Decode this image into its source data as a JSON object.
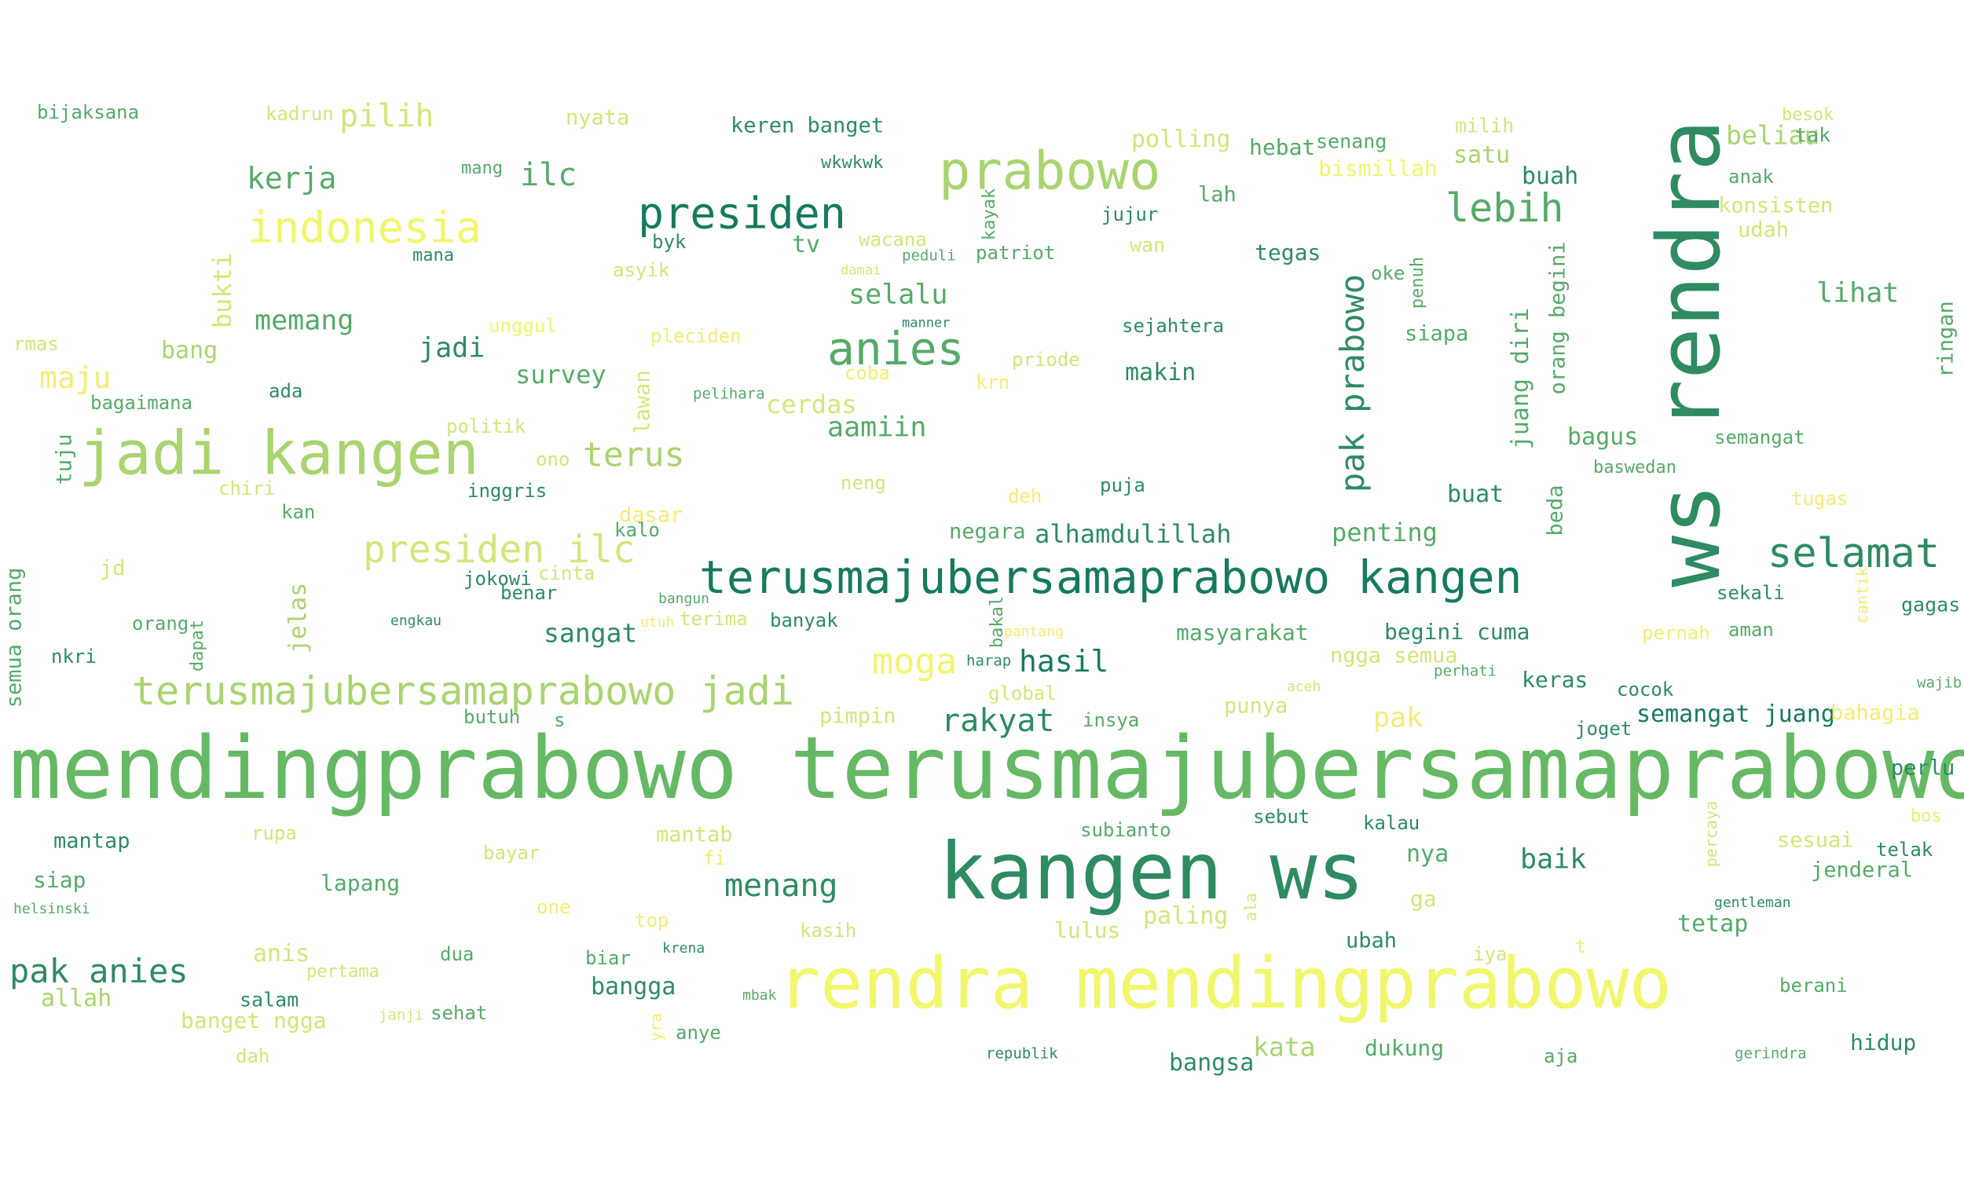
{
  "palette": {
    "yellow": "#f1f66a",
    "light_yellow": "#f5ec74",
    "lime": "#d3e67a",
    "light_green": "#a9d46f",
    "green": "#66b964",
    "mid_green": "#56aa69",
    "teal": "#2e8b62",
    "dark_teal": "#167a5e"
  },
  "words": [
    {
      "text": "mendingprabowo terusmajubersamaprabowo",
      "color": "green"
    },
    {
      "text": "ws rendra",
      "color": "teal"
    },
    {
      "text": "kangen ws",
      "color": "teal"
    },
    {
      "text": "rendra mendingprabowo",
      "color": "yellow"
    },
    {
      "text": "jadi kangen",
      "color": "light_green"
    },
    {
      "text": "terusmajubersamaprabowo kangen",
      "color": "dark_teal"
    },
    {
      "text": "terusmajubersamaprabowo jadi",
      "color": "light_green"
    },
    {
      "text": "prabowo",
      "color": "light_green"
    },
    {
      "text": "presiden",
      "color": "dark_teal"
    },
    {
      "text": "anies",
      "color": "mid_green"
    },
    {
      "text": "indonesia",
      "color": "yellow"
    },
    {
      "text": "presiden ilc",
      "color": "lime"
    },
    {
      "text": "selamat",
      "color": "teal"
    },
    {
      "text": "lebih",
      "color": "mid_green"
    },
    {
      "text": "pak prabowo",
      "color": "teal"
    },
    {
      "text": "pak anies",
      "color": "teal"
    },
    {
      "text": "moga",
      "color": "yellow"
    },
    {
      "text": "menang",
      "color": "teal"
    },
    {
      "text": "rakyat",
      "color": "teal"
    },
    {
      "text": "hasil",
      "color": "dark_teal"
    },
    {
      "text": "selalu",
      "color": "mid_green"
    },
    {
      "text": "terus",
      "color": "light_green"
    },
    {
      "text": "kerja",
      "color": "mid_green"
    },
    {
      "text": "ilc",
      "color": "mid_green"
    },
    {
      "text": "pilih",
      "color": "lime"
    },
    {
      "text": "lihat",
      "color": "mid_green"
    },
    {
      "text": "baik",
      "color": "teal"
    },
    {
      "text": "aamiin",
      "color": "mid_green"
    },
    {
      "text": "cerdas",
      "color": "lime"
    },
    {
      "text": "memang",
      "color": "mid_green"
    },
    {
      "text": "maju",
      "color": "light_yellow"
    },
    {
      "text": "jadi",
      "color": "teal"
    },
    {
      "text": "survey",
      "color": "mid_green"
    },
    {
      "text": "alhamdulillah",
      "color": "teal"
    },
    {
      "text": "penting",
      "color": "mid_green"
    },
    {
      "text": "sangat",
      "color": "teal"
    },
    {
      "text": "makin",
      "color": "teal"
    },
    {
      "text": "beliau",
      "color": "light_green"
    },
    {
      "text": "bagus",
      "color": "mid_green"
    },
    {
      "text": "buat",
      "color": "teal"
    },
    {
      "text": "bukti",
      "color": "lime"
    },
    {
      "text": "jelas",
      "color": "light_green"
    },
    {
      "text": "juang diri",
      "color": "mid_green"
    },
    {
      "text": "orang begini",
      "color": "mid_green"
    },
    {
      "text": "semua orang",
      "color": "mid_green"
    },
    {
      "text": "lawan",
      "color": "lime"
    },
    {
      "text": "tuju",
      "color": "mid_green"
    },
    {
      "text": "beda",
      "color": "mid_green"
    },
    {
      "text": "ringan",
      "color": "mid_green"
    },
    {
      "text": "penuh",
      "color": "mid_green"
    },
    {
      "text": "kayak",
      "color": "mid_green"
    },
    {
      "text": "bakal",
      "color": "mid_green"
    },
    {
      "text": "dapat",
      "color": "mid_green"
    },
    {
      "text": "percaya",
      "color": "lime"
    },
    {
      "text": "cantik",
      "color": "light_yellow"
    },
    {
      "text": "yra",
      "color": "light_yellow"
    },
    {
      "text": "ala",
      "color": "lime"
    },
    {
      "text": "bijaksana",
      "color": "mid_green"
    },
    {
      "text": "kadrun",
      "color": "lime"
    },
    {
      "text": "nyata",
      "color": "lime"
    },
    {
      "text": "keren banget",
      "color": "teal"
    },
    {
      "text": "mang",
      "color": "mid_green"
    },
    {
      "text": "wkwkwk",
      "color": "teal"
    },
    {
      "text": "polling",
      "color": "lime"
    },
    {
      "text": "hebat",
      "color": "mid_green"
    },
    {
      "text": "senang",
      "color": "mid_green"
    },
    {
      "text": "milih",
      "color": "lime"
    },
    {
      "text": "besok",
      "color": "lime"
    },
    {
      "text": "tak",
      "color": "mid_green"
    },
    {
      "text": "satu",
      "color": "light_green"
    },
    {
      "text": "buah",
      "color": "teal"
    },
    {
      "text": "anak",
      "color": "mid_green"
    },
    {
      "text": "bismillah",
      "color": "yellow"
    },
    {
      "text": "lah",
      "color": "mid_green"
    },
    {
      "text": "konsisten",
      "color": "lime"
    },
    {
      "text": "udah",
      "color": "lime"
    },
    {
      "text": "jujur",
      "color": "teal"
    },
    {
      "text": "byk",
      "color": "teal"
    },
    {
      "text": "tv",
      "color": "mid_green"
    },
    {
      "text": "wacana",
      "color": "lime"
    },
    {
      "text": "mana",
      "color": "teal"
    },
    {
      "text": "asyik",
      "color": "lime"
    },
    {
      "text": "damai",
      "color": "lime"
    },
    {
      "text": "peduli",
      "color": "mid_green"
    },
    {
      "text": "patriot",
      "color": "mid_green"
    },
    {
      "text": "wan",
      "color": "lime"
    },
    {
      "text": "tegas",
      "color": "teal"
    },
    {
      "text": "oke",
      "color": "mid_green"
    },
    {
      "text": "manner",
      "color": "teal"
    },
    {
      "text": "sejahtera",
      "color": "teal"
    },
    {
      "text": "siapa",
      "color": "mid_green"
    },
    {
      "text": "rmas",
      "color": "lime"
    },
    {
      "text": "bang",
      "color": "light_green"
    },
    {
      "text": "unggul",
      "color": "yellow"
    },
    {
      "text": "pleciden",
      "color": "light_yellow"
    },
    {
      "text": "ada",
      "color": "teal"
    },
    {
      "text": "bagaimana",
      "color": "mid_green"
    },
    {
      "text": "coba",
      "color": "light_yellow"
    },
    {
      "text": "krn",
      "color": "light_yellow"
    },
    {
      "text": "priode",
      "color": "lime"
    },
    {
      "text": "pelihara",
      "color": "mid_green"
    },
    {
      "text": "politik",
      "color": "lime"
    },
    {
      "text": "ono",
      "color": "lime"
    },
    {
      "text": "semangat",
      "color": "mid_green"
    },
    {
      "text": "baswedan",
      "color": "mid_green"
    },
    {
      "text": "chiri",
      "color": "lime"
    },
    {
      "text": "inggris",
      "color": "teal"
    },
    {
      "text": "neng",
      "color": "lime"
    },
    {
      "text": "deh",
      "color": "light_yellow"
    },
    {
      "text": "puja",
      "color": "teal"
    },
    {
      "text": "tugas",
      "color": "light_yellow"
    },
    {
      "text": "kan",
      "color": "mid_green"
    },
    {
      "text": "dasar",
      "color": "light_yellow"
    },
    {
      "text": "kalo",
      "color": "mid_green"
    },
    {
      "text": "negara",
      "color": "mid_green"
    },
    {
      "text": "jd",
      "color": "lime"
    },
    {
      "text": "jokowi",
      "color": "teal"
    },
    {
      "text": "cinta",
      "color": "lime"
    },
    {
      "text": "benar",
      "color": "teal"
    },
    {
      "text": "sekali",
      "color": "teal"
    },
    {
      "text": "gagas",
      "color": "teal"
    },
    {
      "text": "orang",
      "color": "mid_green"
    },
    {
      "text": "engkau",
      "color": "teal"
    },
    {
      "text": "bangun",
      "color": "mid_green"
    },
    {
      "text": "utuh",
      "color": "light_yellow"
    },
    {
      "text": "terima",
      "color": "lime"
    },
    {
      "text": "banyak",
      "color": "teal"
    },
    {
      "text": "pantang",
      "color": "light_yellow"
    },
    {
      "text": "masyarakat",
      "color": "mid_green"
    },
    {
      "text": "begini cuma",
      "color": "teal"
    },
    {
      "text": "pernah",
      "color": "light_yellow"
    },
    {
      "text": "aman",
      "color": "mid_green"
    },
    {
      "text": "nkri",
      "color": "teal"
    },
    {
      "text": "harap",
      "color": "teal"
    },
    {
      "text": "ngga semua",
      "color": "lime"
    },
    {
      "text": "perhati",
      "color": "mid_green"
    },
    {
      "text": "keras",
      "color": "teal"
    },
    {
      "text": "cocok",
      "color": "teal"
    },
    {
      "text": "wajib",
      "color": "mid_green"
    },
    {
      "text": "butuh",
      "color": "mid_green"
    },
    {
      "text": "s",
      "color": "mid_green"
    },
    {
      "text": "pimpin",
      "color": "lime"
    },
    {
      "text": "global",
      "color": "lime"
    },
    {
      "text": "insya",
      "color": "mid_green"
    },
    {
      "text": "aceh",
      "color": "lime"
    },
    {
      "text": "punya",
      "color": "lime"
    },
    {
      "text": "pak",
      "color": "light_yellow"
    },
    {
      "text": "semangat juang",
      "color": "dark_teal"
    },
    {
      "text": "bahagia",
      "color": "light_yellow"
    },
    {
      "text": "joget",
      "color": "teal"
    },
    {
      "text": "perlu",
      "color": "teal"
    },
    {
      "text": "mantap",
      "color": "teal"
    },
    {
      "text": "rupa",
      "color": "lime"
    },
    {
      "text": "mantab",
      "color": "lime"
    },
    {
      "text": "subianto",
      "color": "mid_green"
    },
    {
      "text": "sebut",
      "color": "teal"
    },
    {
      "text": "kalau",
      "color": "teal"
    },
    {
      "text": "bos",
      "color": "light_yellow"
    },
    {
      "text": "siap",
      "color": "mid_green"
    },
    {
      "text": "bayar",
      "color": "lime"
    },
    {
      "text": "fi",
      "color": "light_yellow"
    },
    {
      "text": "nya",
      "color": "mid_green"
    },
    {
      "text": "sesuai",
      "color": "lime"
    },
    {
      "text": "telak",
      "color": "teal"
    },
    {
      "text": "lapang",
      "color": "mid_green"
    },
    {
      "text": "jenderal",
      "color": "mid_green"
    },
    {
      "text": "helsinski",
      "color": "mid_green"
    },
    {
      "text": "one",
      "color": "light_yellow"
    },
    {
      "text": "top",
      "color": "light_yellow"
    },
    {
      "text": "ga",
      "color": "lime"
    },
    {
      "text": "gentleman",
      "color": "teal"
    },
    {
      "text": "paling",
      "color": "lime"
    },
    {
      "text": "lulus",
      "color": "lime"
    },
    {
      "text": "kasih",
      "color": "lime"
    },
    {
      "text": "tetap",
      "color": "mid_green"
    },
    {
      "text": "anis",
      "color": "lime"
    },
    {
      "text": "dua",
      "color": "mid_green"
    },
    {
      "text": "krena",
      "color": "teal"
    },
    {
      "text": "biar",
      "color": "mid_green"
    },
    {
      "text": "ubah",
      "color": "teal"
    },
    {
      "text": "t",
      "color": "light_yellow"
    },
    {
      "text": "iya",
      "color": "lime"
    },
    {
      "text": "pertama",
      "color": "lime"
    },
    {
      "text": "allah",
      "color": "light_green"
    },
    {
      "text": "salam",
      "color": "teal"
    },
    {
      "text": "bangga",
      "color": "teal"
    },
    {
      "text": "berani",
      "color": "mid_green"
    },
    {
      "text": "banget ngga",
      "color": "lime"
    },
    {
      "text": "janji",
      "color": "lime"
    },
    {
      "text": "sehat",
      "color": "mid_green"
    },
    {
      "text": "mbak",
      "color": "mid_green"
    },
    {
      "text": "anye",
      "color": "mid_green"
    },
    {
      "text": "hidup",
      "color": "teal"
    },
    {
      "text": "kata",
      "color": "light_green"
    },
    {
      "text": "dukung",
      "color": "mid_green"
    },
    {
      "text": "dah",
      "color": "lime"
    },
    {
      "text": "republik",
      "color": "teal"
    },
    {
      "text": "bangsa",
      "color": "teal"
    },
    {
      "text": "aja",
      "color": "mid_green"
    },
    {
      "text": "gerindra",
      "color": "mid_green"
    }
  ]
}
